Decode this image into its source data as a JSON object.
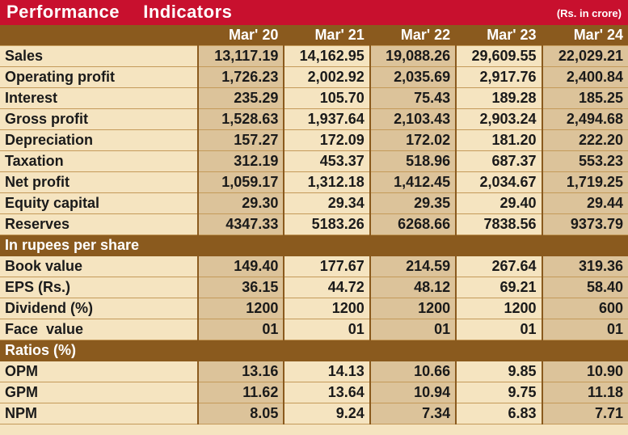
{
  "header": {
    "title": "Performance  Indicators",
    "unit": "(Rs. in crore)"
  },
  "columns": [
    "Mar' 20",
    "Mar' 21",
    "Mar' 22",
    "Mar' 23",
    "Mar' 24"
  ],
  "rows": [
    {
      "type": "data",
      "label": "Sales",
      "values": [
        "13,117.19",
        "14,162.95",
        "19,088.26",
        "29,609.55",
        "22,029.21"
      ]
    },
    {
      "type": "data",
      "label": "Operating profit",
      "values": [
        "1,726.23",
        "2,002.92",
        "2,035.69",
        "2,917.76",
        "2,400.84"
      ]
    },
    {
      "type": "data",
      "label": "Interest",
      "values": [
        "235.29",
        "105.70",
        "75.43",
        "189.28",
        "185.25"
      ]
    },
    {
      "type": "data",
      "label": "Gross profit",
      "values": [
        "1,528.63",
        "1,937.64",
        "2,103.43",
        "2,903.24",
        "2,494.68"
      ]
    },
    {
      "type": "data",
      "label": "Depreciation",
      "values": [
        "157.27",
        "172.09",
        "172.02",
        "181.20",
        "222.20"
      ]
    },
    {
      "type": "data",
      "label": "Taxation",
      "values": [
        "312.19",
        "453.37",
        "518.96",
        "687.37",
        "553.23"
      ]
    },
    {
      "type": "data",
      "label": "Net profit",
      "values": [
        "1,059.17",
        "1,312.18",
        "1,412.45",
        "2,034.67",
        "1,719.25"
      ]
    },
    {
      "type": "data",
      "label": "Equity capital",
      "values": [
        "29.30",
        "29.34",
        "29.35",
        "29.40",
        "29.44"
      ]
    },
    {
      "type": "data",
      "label": "Reserves",
      "values": [
        "4347.33",
        "5183.26",
        "6268.66",
        "7838.56",
        "9373.79"
      ]
    },
    {
      "type": "section",
      "label": "In rupees per share"
    },
    {
      "type": "data",
      "label": "Book value",
      "values": [
        "149.40",
        "177.67",
        "214.59",
        "267.64",
        "319.36"
      ]
    },
    {
      "type": "data",
      "label": "EPS (Rs.)",
      "values": [
        "36.15",
        "44.72",
        "48.12",
        "69.21",
        "58.40"
      ]
    },
    {
      "type": "data",
      "label": "Dividend (%)",
      "values": [
        "1200",
        "1200",
        "1200",
        "1200",
        "600"
      ]
    },
    {
      "type": "data",
      "label": "Face  value",
      "values": [
        "01",
        "01",
        "01",
        "01",
        "01"
      ]
    },
    {
      "type": "section",
      "label": "Ratios (%)"
    },
    {
      "type": "data",
      "label": "OPM",
      "values": [
        "13.16",
        "14.13",
        "10.66",
        "9.85",
        "10.90"
      ]
    },
    {
      "type": "data",
      "label": "GPM",
      "values": [
        "11.62",
        "13.64",
        "10.94",
        "9.75",
        "11.18"
      ]
    },
    {
      "type": "data",
      "label": "NPM",
      "values": [
        "8.05",
        "9.24",
        "7.34",
        "6.83",
        "7.71"
      ]
    }
  ],
  "colors": {
    "title_bar": "#c8102e",
    "header_row": "#8a5a1e",
    "shade_dark": "#dcc39a",
    "shade_light": "#f5e4c0"
  }
}
